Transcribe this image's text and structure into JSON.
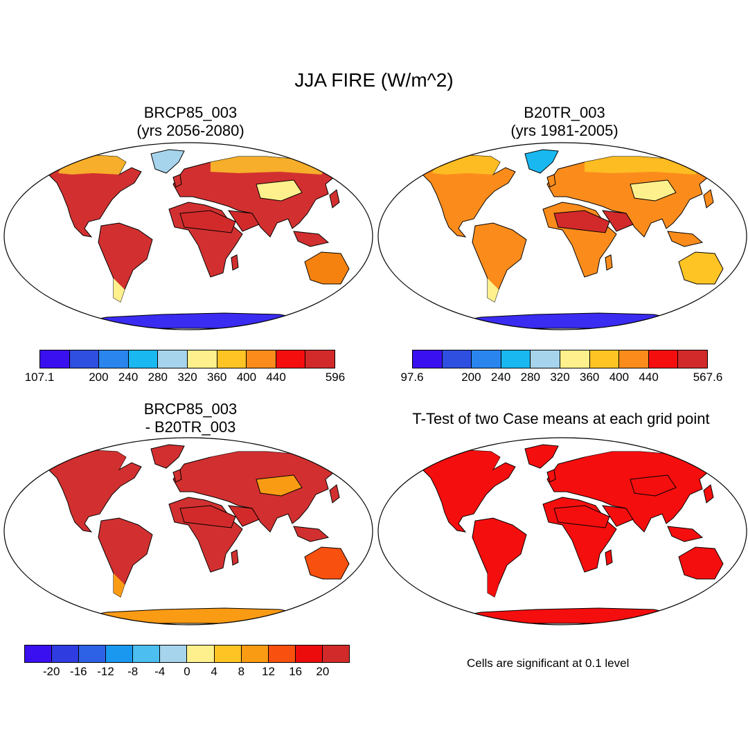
{
  "figure_title": "JJA FIRE (W/m^2)",
  "panels": [
    {
      "title_line1": "BRCP85_003",
      "title_line2": "(yrs 2056-2080)"
    },
    {
      "title_line1": "B20TR_003",
      "title_line2": "(yrs 1981-2005)"
    },
    {
      "title_line1": "BRCP85_003",
      "title_line2": "- B20TR_003"
    },
    {
      "title_line1": "T-Test of two Case means at each grid point",
      "title_line2": ""
    }
  ],
  "colorbars": [
    {
      "colors": [
        "#3a10f0",
        "#2e4fe0",
        "#2a86ee",
        "#1ab8f0",
        "#a6d4ec",
        "#fef08c",
        "#fec424",
        "#fb8c1c",
        "#f50e0e",
        "#d22a2a"
      ],
      "ticks": [
        {
          "label": "107.1",
          "pos": 0
        },
        {
          "label": "200",
          "pos": 2
        },
        {
          "label": "240",
          "pos": 3
        },
        {
          "label": "280",
          "pos": 4
        },
        {
          "label": "320",
          "pos": 5
        },
        {
          "label": "360",
          "pos": 6
        },
        {
          "label": "400",
          "pos": 7
        },
        {
          "label": "440",
          "pos": 8
        },
        {
          "label": "596",
          "pos": 10
        }
      ]
    },
    {
      "colors": [
        "#3a10f0",
        "#2e4fe0",
        "#2a86ee",
        "#1ab8f0",
        "#a6d4ec",
        "#fef08c",
        "#fec424",
        "#fb8c1c",
        "#f50e0e",
        "#d22a2a"
      ],
      "ticks": [
        {
          "label": "97.6",
          "pos": 0
        },
        {
          "label": "200",
          "pos": 2
        },
        {
          "label": "240",
          "pos": 3
        },
        {
          "label": "280",
          "pos": 4
        },
        {
          "label": "320",
          "pos": 5
        },
        {
          "label": "360",
          "pos": 6
        },
        {
          "label": "400",
          "pos": 7
        },
        {
          "label": "440",
          "pos": 8
        },
        {
          "label": "567.6",
          "pos": 10
        }
      ]
    },
    {
      "colors": [
        "#3a10f0",
        "#2e3ce0",
        "#2e62e6",
        "#1a98f0",
        "#4cbef0",
        "#a6d4ec",
        "#fef08c",
        "#fec424",
        "#fa9b14",
        "#f8500e",
        "#ec0c0c",
        "#d22a2a"
      ],
      "ticks": [
        {
          "label": "-20",
          "pos": 1
        },
        {
          "label": "-16",
          "pos": 2
        },
        {
          "label": "-12",
          "pos": 3
        },
        {
          "label": "-8",
          "pos": 4
        },
        {
          "label": "-4",
          "pos": 5
        },
        {
          "label": "0",
          "pos": 6
        },
        {
          "label": "4",
          "pos": 7
        },
        {
          "label": "8",
          "pos": 8
        },
        {
          "label": "12",
          "pos": 9
        },
        {
          "label": "16",
          "pos": 10
        },
        {
          "label": "20",
          "pos": 11
        }
      ]
    }
  ],
  "significance_note": "Cells are significant at 0.1 level",
  "map_colors": {
    "panel1": {
      "base": "#d23030",
      "desert": "#d22a2a",
      "mid": "#f5820e",
      "high_lat": "#fdc42a",
      "cold": "#fef08c",
      "greenland": "#a6d4ec",
      "antarctica": "#3a2cf0"
    },
    "panel2": {
      "base": "#fb8c1c",
      "desert": "#d22a2a",
      "mid": "#fec424",
      "high_lat": "#fec424",
      "cold": "#fef08c",
      "greenland": "#1ab8f0",
      "antarctica": "#3a2cf0"
    },
    "panel3": {
      "base": "#d23030",
      "desert": "#d22a2a",
      "mid": "#f8500e",
      "high_lat": "#d23030",
      "cold": "#fa9b14",
      "greenland": "#d23030",
      "antarctica": "#fa9b14"
    },
    "panel4": {
      "base": "#f50e0e",
      "desert": "#f50e0e",
      "mid": "#f50e0e",
      "high_lat": "#f50e0e",
      "cold": "#f50e0e",
      "greenland": "#f50e0e",
      "antarctica": "#f50e0e"
    }
  }
}
